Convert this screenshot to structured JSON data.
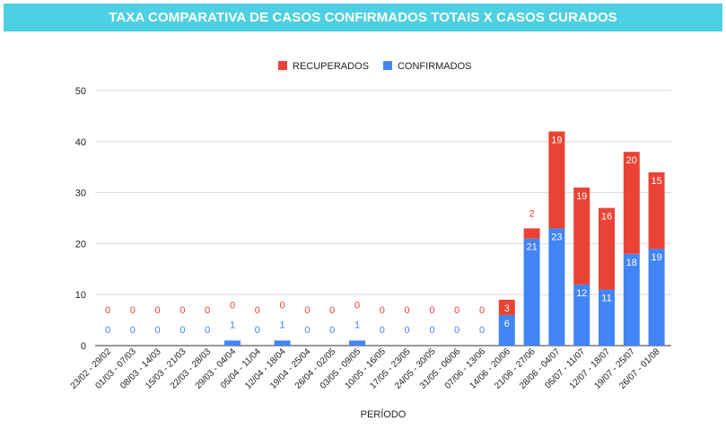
{
  "chart_data": {
    "type": "bar",
    "stacked": true,
    "title": "TAXA COMPARATIVA DE CASOS CONFIRMADOS TOTAIS X CASOS CURADOS",
    "xlabel": "PERÍODO",
    "ylabel": "",
    "ylim": [
      0,
      50
    ],
    "yticks": [
      "0",
      "10",
      "20",
      "30",
      "40",
      "50"
    ],
    "grid": true,
    "legend_position": "top",
    "categories": [
      "23/02 - 29/02",
      "01/03 - 07/03",
      "08/03 - 14/03",
      "15/03 - 21/03",
      "22/03 - 28/03",
      "29/03 - 04/04",
      "05/04 - 11/04",
      "12/04 - 18/04",
      "19/04 - 25/04",
      "26/04 - 02/05",
      "03/05 - 09/05",
      "10/05 - 16/05",
      "17/05 - 23/05",
      "24/05 - 30/05",
      "31/05 - 06/06",
      "07/06 - 13/06",
      "14/06 - 20/06",
      "21/06 - 27/06",
      "28/06 - 04/07",
      "05/07 - 11/07",
      "12/07 - 18/07",
      "19/07 - 25/07",
      "26/07 - 01/08"
    ],
    "series": [
      {
        "name": "CONFIRMADOS",
        "color": "#4285f4",
        "values": [
          0,
          0,
          0,
          0,
          0,
          1,
          0,
          1,
          0,
          0,
          1,
          0,
          0,
          0,
          0,
          0,
          6,
          21,
          23,
          12,
          11,
          18,
          19
        ]
      },
      {
        "name": "RECUPERADOS",
        "color": "#ea4335",
        "values": [
          0,
          0,
          0,
          0,
          0,
          0,
          0,
          0,
          0,
          0,
          0,
          0,
          0,
          0,
          0,
          0,
          3,
          2,
          19,
          19,
          16,
          20,
          15
        ]
      }
    ],
    "legend_order": [
      "RECUPERADOS",
      "CONFIRMADOS"
    ]
  }
}
